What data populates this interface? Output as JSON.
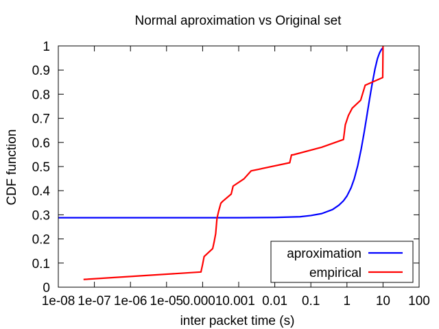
{
  "chart_data": {
    "type": "line",
    "title": "Normal aproximation vs Original set",
    "xlabel": "inter packet time (s)",
    "ylabel": "CDF function",
    "xscale": "log",
    "xlim": [
      1e-08,
      100
    ],
    "ylim": [
      0,
      1
    ],
    "x_tick_values": [
      1e-08,
      1e-07,
      1e-06,
      1e-05,
      0.0001,
      0.001,
      0.01,
      0.1,
      1,
      10,
      100
    ],
    "x_tick_labels": [
      "1e-08",
      "1e-07",
      "1e-06",
      "1e-05",
      "0.0001",
      "0.001",
      "0.01",
      "0.1",
      "1",
      "10",
      "100"
    ],
    "y_tick_values": [
      0,
      0.1,
      0.2,
      0.3,
      0.4,
      0.5,
      0.6,
      0.7,
      0.8,
      0.9,
      1
    ],
    "y_tick_labels": [
      "0",
      "0.1",
      "0.2",
      "0.3",
      "0.4",
      "0.5",
      "0.6",
      "0.7",
      "0.8",
      "0.9",
      "1"
    ],
    "grid": false,
    "legend_position": "bottom-right",
    "series": [
      {
        "name": "aproximation",
        "color": "#0000ff",
        "x": [
          1e-08,
          1e-06,
          0.0001,
          0.001,
          0.01,
          0.05,
          0.1,
          0.2,
          0.4,
          0.6,
          0.8,
          1.0,
          1.3,
          1.6,
          2.0,
          2.5,
          3.0,
          3.5,
          4.0,
          4.5,
          5.0,
          6.0,
          7.0,
          8.0,
          9.0,
          10.0
        ],
        "y": [
          0.288,
          0.288,
          0.288,
          0.288,
          0.289,
          0.292,
          0.297,
          0.305,
          0.322,
          0.34,
          0.358,
          0.378,
          0.412,
          0.45,
          0.505,
          0.575,
          0.642,
          0.703,
          0.757,
          0.803,
          0.843,
          0.905,
          0.947,
          0.971,
          0.985,
          0.993
        ]
      },
      {
        "name": "empirical",
        "color": "#ff0000",
        "x": [
          5e-08,
          9e-05,
          0.0001,
          0.00011,
          0.00019,
          0.00021,
          0.00023,
          0.00025,
          0.00028,
          0.00032,
          0.00036,
          0.00062,
          0.0007,
          0.0014,
          0.0022,
          0.026,
          0.029,
          0.033,
          0.2,
          0.8,
          0.85,
          0.9,
          1.1,
          1.4,
          2.4,
          3.2,
          9.8,
          10.0
        ],
        "y": [
          0.032,
          0.063,
          0.095,
          0.127,
          0.16,
          0.19,
          0.222,
          0.285,
          0.317,
          0.348,
          0.356,
          0.386,
          0.419,
          0.449,
          0.482,
          0.516,
          0.548,
          0.549,
          0.58,
          0.612,
          0.643,
          0.673,
          0.712,
          0.742,
          0.775,
          0.837,
          0.869,
          1.0
        ]
      }
    ]
  }
}
